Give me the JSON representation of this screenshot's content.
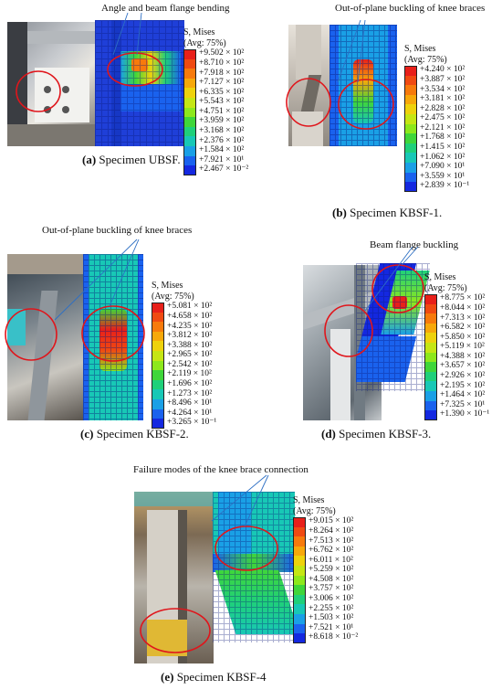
{
  "panels": [
    {
      "id": "a",
      "title": "Angle and beam flange bending",
      "legend_header1": "S, Mises",
      "legend_header2": "(Avg: 75%)",
      "legend": [
        "+9.502 × 10²",
        "+8.710 × 10²",
        "+7.918 × 10²",
        "+7.127 × 10²",
        "+6.335 × 10²",
        "+5.543 × 10²",
        "+4.751 × 10²",
        "+3.959 × 10²",
        "+3.168 × 10²",
        "+2.376 × 10²",
        "+1.584 × 10²",
        "+7.921 × 10¹",
        "+2.467 × 10⁻²"
      ],
      "caption_label": "(a)",
      "caption_text": " Specimen UBSF."
    },
    {
      "id": "b",
      "title": "Out-of-plane buckling of knee braces",
      "legend_header1": "S, Mises",
      "legend_header2": "(Avg: 75%)",
      "legend": [
        "+4.240 × 10²",
        "+3.887 × 10²",
        "+3.534 × 10²",
        "+3.181 × 10²",
        "+2.828 × 10²",
        "+2.475 × 10²",
        "+2.121 × 10²",
        "+1.768 × 10²",
        "+1.415 × 10²",
        "+1.062 × 10²",
        "+7.090 × 10¹",
        "+3.559 × 10¹",
        "+2.839 × 10⁻¹"
      ],
      "caption_label": "(b)",
      "caption_text": " Specimen KBSF-1."
    },
    {
      "id": "c",
      "title": "Out-of-plane buckling of knee braces",
      "legend_header1": "S, Mises",
      "legend_header2": "(Avg: 75%)",
      "legend": [
        "+5.081 × 10²",
        "+4.658 × 10²",
        "+4.235 × 10²",
        "+3.812 × 10²",
        "+3.388 × 10²",
        "+2.965 × 10²",
        "+2.542 × 10²",
        "+2.119 × 10²",
        "+1.696 × 10²",
        "+1.273 × 10²",
        "+8.496 × 10¹",
        "+4.264 × 10¹",
        "+3.265 × 10⁻¹"
      ],
      "caption_label": "(c)",
      "caption_text": " Specimen KBSF-2."
    },
    {
      "id": "d",
      "title": "Beam flange buckling",
      "legend_header1": "S, Mises",
      "legend_header2": "(Avg: 75%)",
      "legend": [
        "+8.775 × 10²",
        "+8.044 × 10²",
        "+7.313 × 10²",
        "+6.582 × 10²",
        "+5.850 × 10²",
        "+5.119 × 10²",
        "+4.388 × 10²",
        "+3.657 × 10²",
        "+2.926 × 10²",
        "+2.195 × 10²",
        "+1.464 × 10²",
        "+7.325 × 10¹",
        "+1.390 × 10⁻¹"
      ],
      "caption_label": "(d)",
      "caption_text": " Specimen KBSF-3."
    },
    {
      "id": "e",
      "title": "Failure modes of the knee brace connection",
      "legend_header1": "S, Mises",
      "legend_header2": "(Avg: 75%)",
      "legend": [
        "+9.015 × 10²",
        "+8.264 × 10²",
        "+7.513 × 10²",
        "+6.762 × 10²",
        "+6.011 × 10²",
        "+5.259 × 10²",
        "+4.508 × 10²",
        "+3.757 × 10²",
        "+3.006 × 10²",
        "+2.255 × 10²",
        "+1.503 × 10²",
        "+7.521 × 10¹",
        "+8.618 × 10⁻²"
      ],
      "caption_label": "(e)",
      "caption_text": " Specimen KBSF-4"
    }
  ],
  "colors": {
    "scale": [
      "#e8201a",
      "#f04a12",
      "#f77a0c",
      "#f7a80a",
      "#eed20c",
      "#c5e614",
      "#8de81c",
      "#3fd63a",
      "#1fd07a",
      "#18c8b6",
      "#1aa0e6",
      "#1a62ee",
      "#1428e0"
    ],
    "fea_base": "#1f3fd8",
    "mesh": "#0b1a7a",
    "circle": "#e0151b",
    "pointer": "#2d6fc4"
  }
}
